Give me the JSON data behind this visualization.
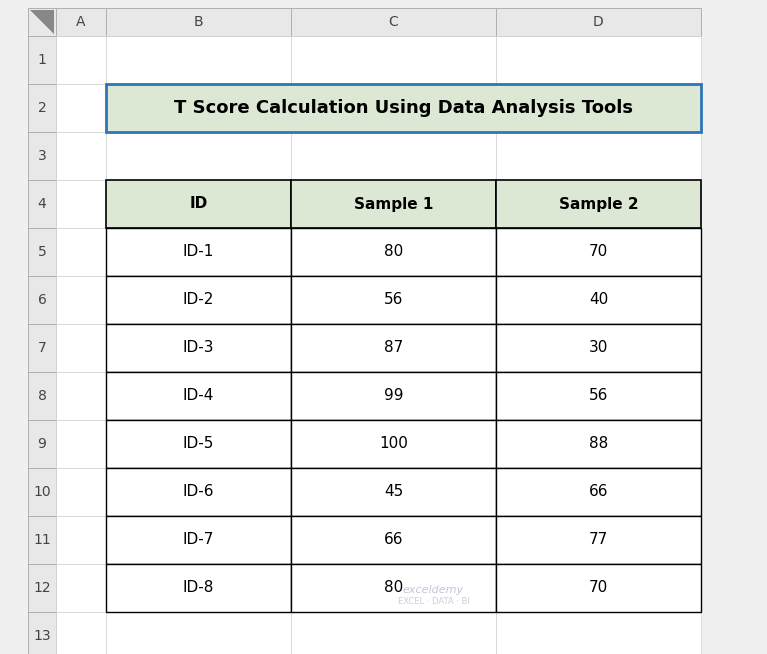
{
  "title": "T Score Calculation Using Data Analysis Tools",
  "headers": [
    "ID",
    "Sample 1",
    "Sample 2"
  ],
  "rows": [
    [
      "ID-1",
      "80",
      "70"
    ],
    [
      "ID-2",
      "56",
      "40"
    ],
    [
      "ID-3",
      "87",
      "30"
    ],
    [
      "ID-4",
      "99",
      "56"
    ],
    [
      "ID-5",
      "100",
      "88"
    ],
    [
      "ID-6",
      "45",
      "66"
    ],
    [
      "ID-7",
      "66",
      "77"
    ],
    [
      "ID-8",
      "80",
      "70"
    ]
  ],
  "col_letters": [
    "A",
    "B",
    "C",
    "D"
  ],
  "row_numbers": [
    "1",
    "2",
    "3",
    "4",
    "5",
    "6",
    "7",
    "8",
    "9",
    "10",
    "11",
    "12",
    "13"
  ],
  "header_bg": "#dce8d4",
  "title_bg": "#dce8d4",
  "title_border": "#2e75b6",
  "cell_bg": "#ffffff",
  "grid_color": "#000000",
  "excel_bg": "#f0f0f0",
  "row_header_bg": "#ffffff",
  "col_header_bg": "#ffffff",
  "text_color": "#000000",
  "title_fontsize": 13,
  "header_fontsize": 11,
  "cell_fontsize": 11,
  "row_label_fontsize": 10,
  "col_label_fontsize": 10
}
